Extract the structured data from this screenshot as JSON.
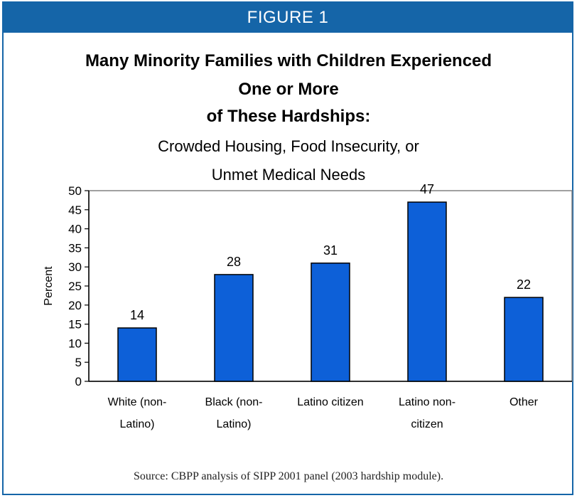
{
  "figure_label": "FIGURE 1",
  "title_lines": [
    "Many Minority Families with Children Experienced",
    "One or More",
    "of These Hardships:"
  ],
  "subtitle_lines": [
    "Crowded Housing, Food Insecurity, or",
    "Unmet Medical Needs"
  ],
  "source": "Source: CBPP analysis of SIPP 2001 panel (2003 hardship module).",
  "colors": {
    "accent": "#1565a8",
    "bar": "#0d60d8",
    "bar_outline": "#000000",
    "plot_border": "#808080"
  },
  "chart_data": {
    "type": "bar",
    "categories": [
      [
        "White (non-",
        "Latino)"
      ],
      [
        "Black (non-",
        "Latino)"
      ],
      [
        "Latino citizen"
      ],
      [
        "Latino non-",
        "citizen"
      ],
      [
        "Other"
      ]
    ],
    "values": [
      14,
      28,
      31,
      47,
      22
    ],
    "data_labels": [
      "14",
      "28",
      "31",
      "47",
      "22"
    ],
    "ylabel": "Percent",
    "xlabel": "",
    "ylim": [
      0,
      50
    ],
    "yticks": [
      0,
      5,
      10,
      15,
      20,
      25,
      30,
      35,
      40,
      45,
      50
    ],
    "grid": false,
    "legend": "none"
  }
}
